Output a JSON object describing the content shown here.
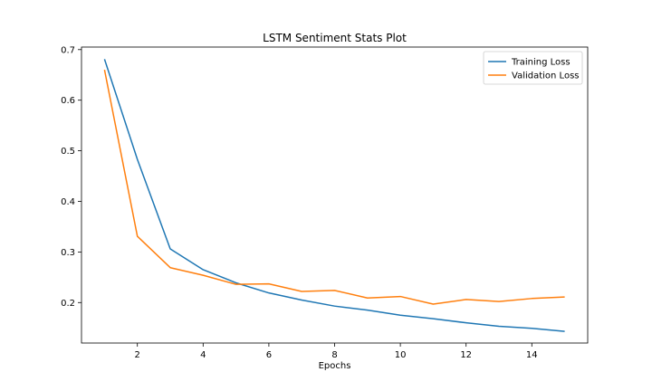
{
  "chart_data": {
    "type": "line",
    "title": "LSTM Sentiment Stats Plot",
    "xlabel": "Epochs",
    "ylabel": "",
    "xlim": [
      0.3,
      15.7
    ],
    "ylim": [
      0.12,
      0.705
    ],
    "xticks": [
      2,
      4,
      6,
      8,
      10,
      12,
      14
    ],
    "yticks": [
      0.2,
      0.3,
      0.4,
      0.5,
      0.6,
      0.7
    ],
    "x": [
      1,
      2,
      3,
      4,
      5,
      6,
      7,
      8,
      9,
      10,
      11,
      12,
      13,
      14,
      15
    ],
    "series": [
      {
        "name": "Training Loss",
        "color": "#1f77b4",
        "values": [
          0.681,
          0.483,
          0.306,
          0.265,
          0.239,
          0.219,
          0.205,
          0.193,
          0.185,
          0.175,
          0.168,
          0.16,
          0.153,
          0.149,
          0.143
        ]
      },
      {
        "name": "Validation Loss",
        "color": "#ff7f0e",
        "values": [
          0.66,
          0.331,
          0.269,
          0.254,
          0.236,
          0.237,
          0.222,
          0.224,
          0.209,
          0.212,
          0.197,
          0.206,
          0.202,
          0.208,
          0.211
        ]
      }
    ],
    "legend_position": "top-right",
    "grid": false
  }
}
